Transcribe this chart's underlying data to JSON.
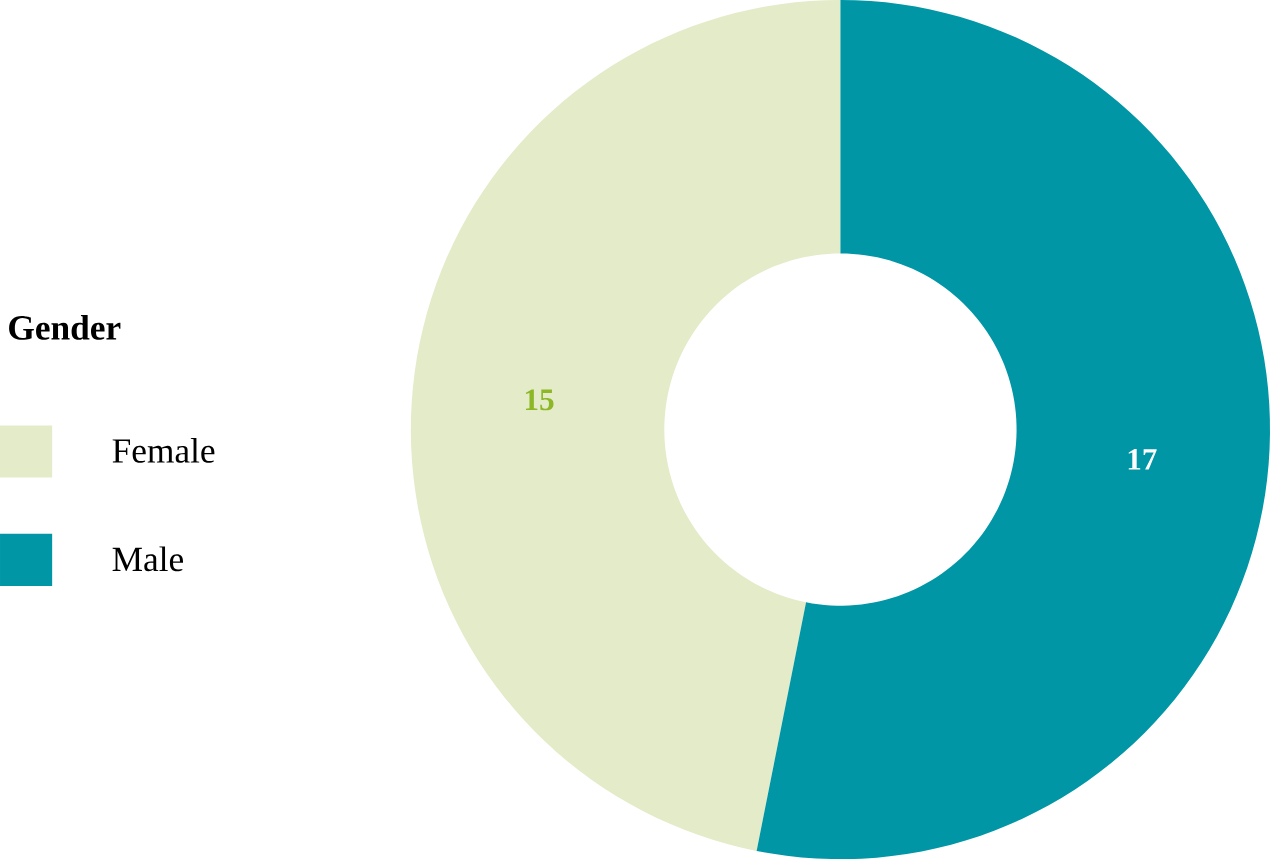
{
  "chart_data": {
    "type": "donut",
    "legend_title": "Gender",
    "categories": [
      "Female",
      "Male"
    ],
    "values": [
      15,
      17
    ],
    "colors": [
      "#e3ebc8",
      "#0096a6"
    ],
    "data_labels": true,
    "legend": "left"
  }
}
